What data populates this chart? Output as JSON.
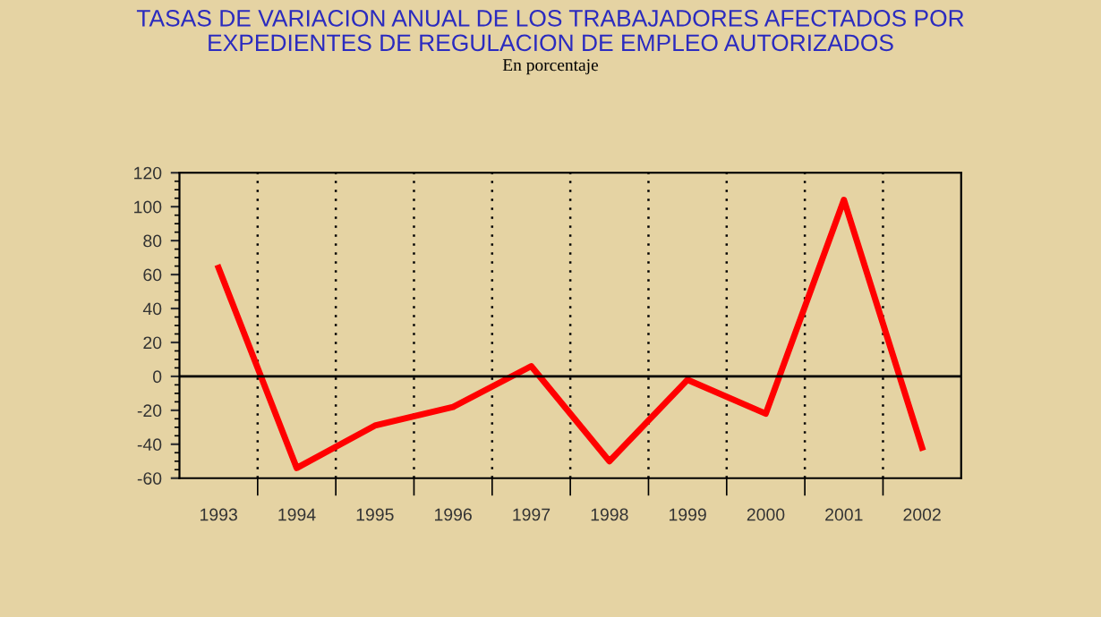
{
  "chart_data": {
    "type": "line",
    "title": "TASAS DE VARIACION ANUAL DE LOS TRABAJADORES AFECTADOS POR\nEXPEDIENTES DE REGULACION DE EMPLEO AUTORIZADOS",
    "subtitle": "En porcentaje",
    "categories": [
      "1993",
      "1994",
      "1995",
      "1996",
      "1997",
      "1998",
      "1999",
      "2000",
      "2001",
      "2002"
    ],
    "series": [
      {
        "color": "#ff0000",
        "values": [
          64,
          -54,
          -29,
          -18,
          6,
          -50,
          -2,
          -22,
          104,
          -42
        ]
      }
    ],
    "ylim": [
      -60,
      120
    ],
    "yticks": [
      -60,
      -40,
      -20,
      0,
      20,
      40,
      60,
      80,
      100,
      120
    ],
    "ref_lines": [
      {
        "axis": "y",
        "value": 0,
        "color": "#000000",
        "line_style": "solid"
      }
    ],
    "grid": "x",
    "legend": false,
    "marker": "none",
    "line_style": "solid"
  }
}
